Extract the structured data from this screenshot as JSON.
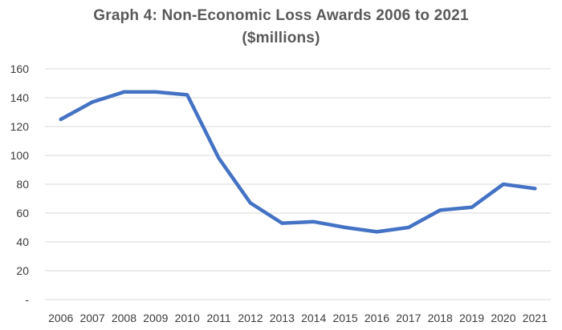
{
  "chart_data": {
    "type": "line",
    "title_line1": "Graph 4: Non-Economic Loss Awards 2006 to 2021",
    "title_line2": "($millions)",
    "xlabel": "",
    "ylabel": "",
    "categories": [
      "2006",
      "2007",
      "2008",
      "2009",
      "2010",
      "2011",
      "2012",
      "2013",
      "2014",
      "2015",
      "2016",
      "2017",
      "2018",
      "2019",
      "2020",
      "2021"
    ],
    "series": [
      {
        "values": [
          125,
          137,
          144,
          144,
          142,
          98,
          67,
          53,
          54,
          50,
          47,
          50,
          62,
          64,
          80,
          77
        ],
        "color": "#4472c4"
      }
    ],
    "ylim": [
      0,
      160
    ],
    "yticks": [
      0,
      20,
      40,
      60,
      80,
      100,
      120,
      140,
      160
    ],
    "ytick_labels": [
      "-",
      "20",
      "40",
      "60",
      "80",
      "100",
      "120",
      "140",
      "160"
    ],
    "grid": true,
    "gridline_color": "#d9d9d9",
    "legend": "none"
  }
}
